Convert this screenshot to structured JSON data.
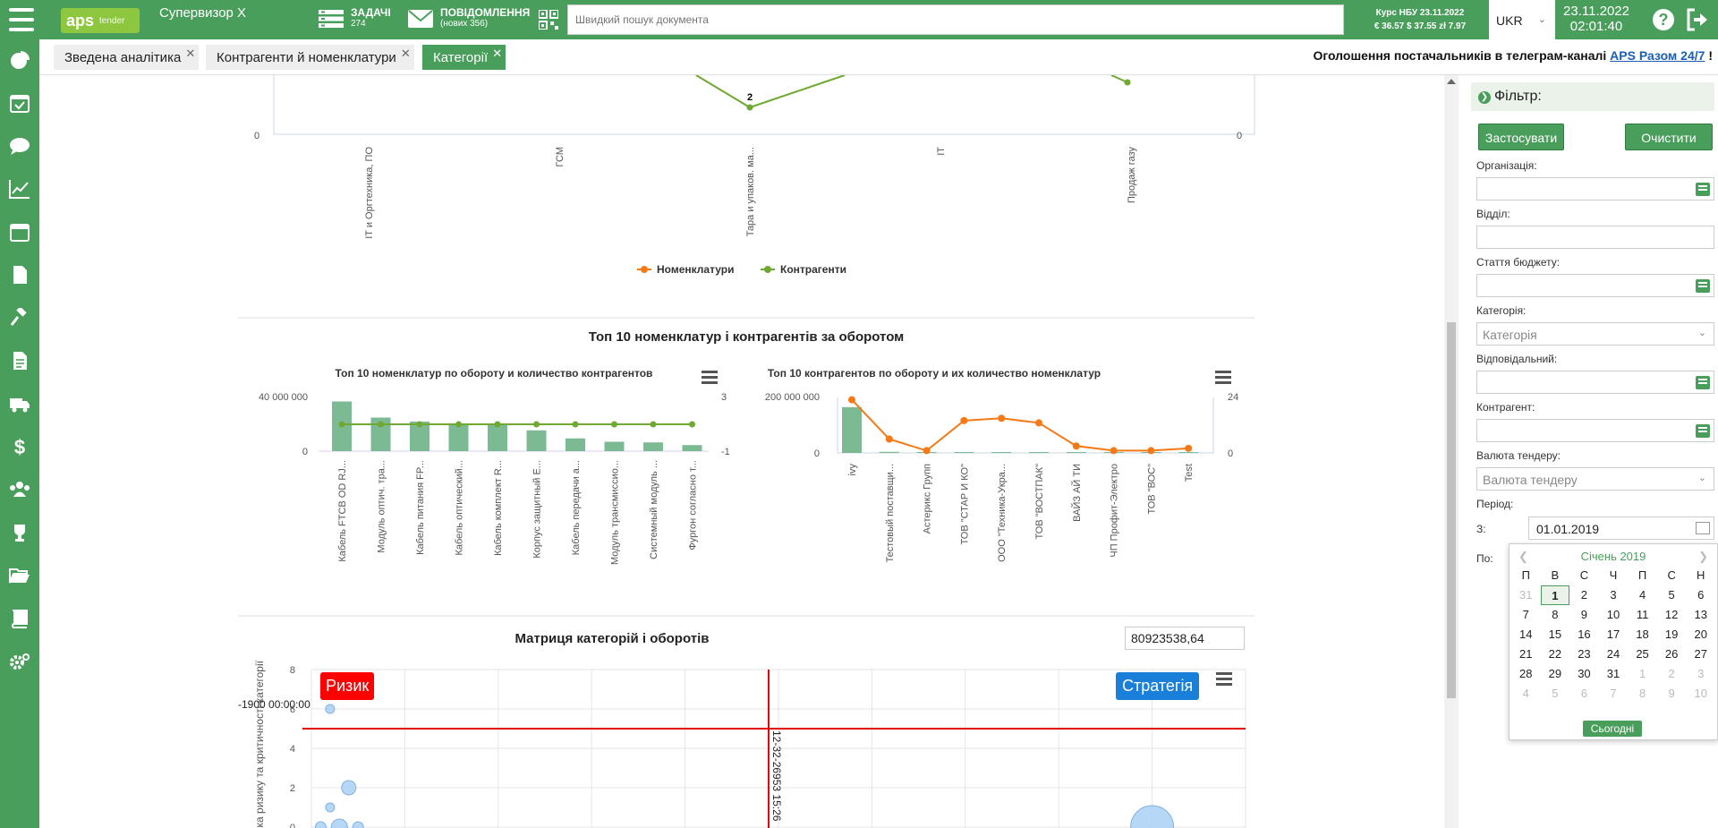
{
  "header": {
    "logo_main": "aps",
    "logo_sub": "tender",
    "user": "Супервизор X",
    "tasks_label": "ЗАДАЧІ",
    "tasks_count": "274",
    "messages_label": "ПОВІДОМЛЕННЯ",
    "messages_new": "(нових 356)",
    "search_placeholder": "Швидкий пошук документа",
    "rate_title": "Курс НБУ 23.11.2022",
    "rate_values": "€ 36.57  $ 37.55  zł 7.97",
    "language": "UKR",
    "date": "23.11.2022",
    "time": "02:01:40"
  },
  "tabs": [
    {
      "label": "Зведена аналітика"
    },
    {
      "label": "Контрагенти й номенклатури"
    },
    {
      "label": "Категорії"
    }
  ],
  "announcement": {
    "text": "Оголошення постачальників в телеграм-каналі",
    "link": "APS Разом 24/7",
    "suffix": "!"
  },
  "chart_top": {
    "y_left_zero": "0",
    "y_right_zero": "0",
    "data_label": "2",
    "categories": [
      "IT и Оргтехника, ПО",
      "ГСМ",
      "Тара и упаков. ма...",
      "IT",
      "Продаж газу"
    ],
    "legend": [
      "Номенклатури",
      "Контрагенти"
    ]
  },
  "section_top10": {
    "title": "Топ 10 номенклатур і контрагентів за оборотом"
  },
  "chart_data": [
    {
      "type": "line",
      "categories": [
        "IT и Оргтехника, ПО",
        "ГСМ",
        "Тара и упаков. ма...",
        "IT",
        "Продаж газу"
      ],
      "series": [
        {
          "name": "Контрагенти",
          "values": [
            null,
            null,
            2,
            null,
            null
          ]
        }
      ]
    },
    {
      "type": "bar",
      "title": "Топ 10 номенклатур по обороту и количество контрагентов",
      "categories": [
        "Кабель FTCB OD RJ...",
        "Модуль оптич. тра...",
        "Кабель питания FP...",
        "Кабель оптический...",
        "Кабель комплект R...",
        "Корпус защитный E...",
        "Кабель передачи а...",
        "Модуль трансмиссио...",
        "Системный модуль ...",
        "Фургон согласно т..."
      ],
      "series": [
        {
          "values": [
            37000000,
            25000000,
            22000000,
            20500000,
            20000000,
            15500000,
            9500000,
            7000000,
            6500000,
            4500000
          ]
        },
        {
          "values": [
            1,
            1,
            1,
            1,
            1,
            1,
            1,
            1,
            1,
            1
          ]
        }
      ],
      "y_left_ticks": [
        "40 000 000",
        "0"
      ],
      "y_right_ticks": [
        "3",
        "-1"
      ]
    },
    {
      "type": "bar",
      "title": "Топ 10 контрагентов по обороту и их количество номенклатур",
      "categories": [
        "ivy",
        "Тестовый поставщи...",
        "Астерикс Групп",
        "ТОВ \"СТАР И КО\"",
        "ООО \"Техника-Укра...",
        "ТОВ \"ВОСТПАК\"",
        "ВАЙЗ АЙ ТИ",
        "ЧП Профит-Электро",
        "ТОВ \"ВОС\"",
        "Test"
      ],
      "series": [
        {
          "values": [
            165000000,
            4000000,
            2000000,
            2000000,
            2000000,
            2000000,
            500000,
            300000,
            200000,
            100000
          ]
        },
        {
          "values": [
            23,
            6,
            1,
            14,
            15,
            13,
            3,
            1,
            1,
            2
          ]
        }
      ],
      "y_left_ticks": [
        "200 000 000",
        "0"
      ],
      "y_right_ticks": [
        "24",
        "0"
      ]
    },
    {
      "type": "scatter",
      "title": "Матриця категорій і оборотів",
      "y_ticks": [
        "8",
        "6",
        "4",
        "2",
        "0"
      ],
      "points": [
        {
          "x": 0.2,
          "y": 6.0
        },
        {
          "x": 0.2,
          "y": 1.0
        },
        {
          "x": 0.4,
          "y": 2.0
        },
        {
          "x": 0.1,
          "y": 0.0
        },
        {
          "x": 0.3,
          "y": 0.0
        },
        {
          "x": 0.5,
          "y": 0.0
        },
        {
          "x": 9.0,
          "y": 0.0
        }
      ]
    }
  ],
  "matrix": {
    "title": "Матриця категорій і оборотів",
    "total": "80923538,64",
    "risk_label": "Ризик",
    "strategy_label": "Стратегія",
    "y_axis_label": "Оцінка ризику та критичності категорії",
    "y_ticks": [
      "8",
      "6",
      "4",
      "2",
      "0"
    ],
    "h_line_label": "-1900 00:00:00",
    "v_line_label": "12-32-26953 15:26"
  },
  "filter": {
    "title": "Фільтр:",
    "apply": "Застосувати",
    "clear": "Очистити",
    "org_label": "Організація:",
    "dept_label": "Відділ:",
    "budget_label": "Стаття бюджету:",
    "category_label": "Категорія:",
    "category_placeholder": "Категорія",
    "responsible_label": "Відповідальний:",
    "counterparty_label": "Контрагент:",
    "currency_label": "Валюта тендеру:",
    "currency_placeholder": "Валюта тендеру",
    "period_label": "Період:",
    "from_label": "З:",
    "from_value": "01.01.2019",
    "to_label": "По:"
  },
  "calendar": {
    "month": "Січень 2019",
    "dow": [
      "П",
      "В",
      "С",
      "Ч",
      "П",
      "С",
      "Н"
    ],
    "today": "Сьогодні",
    "days": [
      "31",
      "1",
      "2",
      "3",
      "4",
      "5",
      "6",
      "7",
      "8",
      "9",
      "10",
      "11",
      "12",
      "13",
      "14",
      "15",
      "16",
      "17",
      "18",
      "19",
      "20",
      "21",
      "22",
      "23",
      "24",
      "25",
      "26",
      "27",
      "28",
      "29",
      "30",
      "31",
      "1",
      "2",
      "3",
      "4",
      "5",
      "6",
      "7",
      "8",
      "9",
      "10"
    ]
  },
  "colors": {
    "brand": "#4a9e5c",
    "orange": "#f47a17",
    "lime": "#6fa832",
    "bar": "#7cba93",
    "risk": "#ff0000",
    "strategy": "#1a7fd8",
    "bubble": "#a9d0f5"
  }
}
